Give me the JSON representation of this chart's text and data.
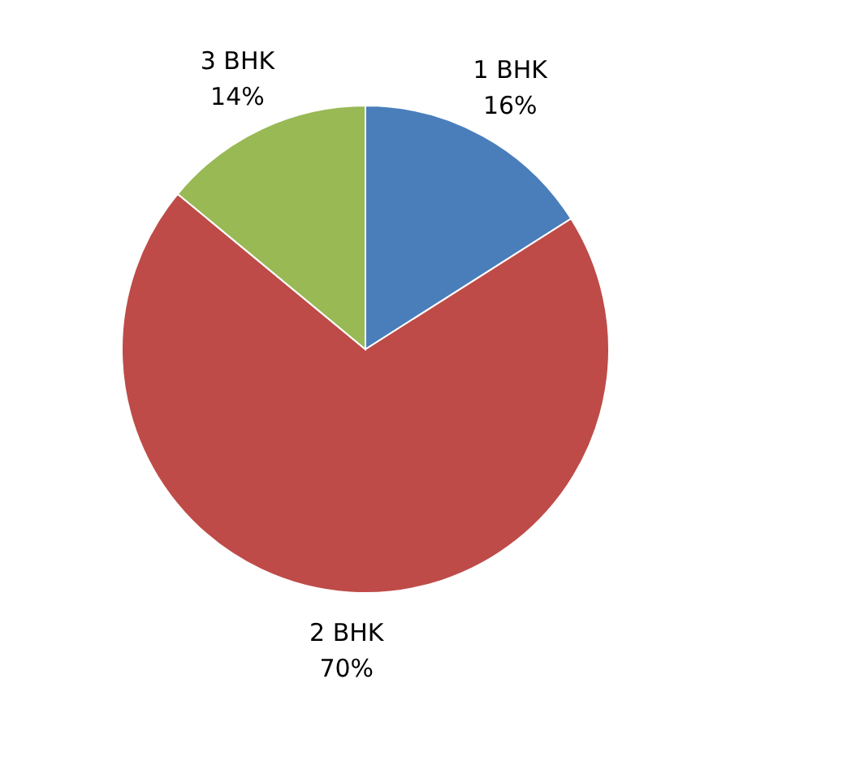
{
  "chart_data": {
    "type": "pie",
    "categories": [
      "1 BHK",
      "2 BHK",
      "3 BHK"
    ],
    "values": [
      16,
      70,
      14
    ],
    "colors": [
      "#4a7ebb",
      "#be4b48",
      "#98b954"
    ],
    "value_labels": [
      "16%",
      "70%",
      "14%"
    ],
    "legend": false
  }
}
